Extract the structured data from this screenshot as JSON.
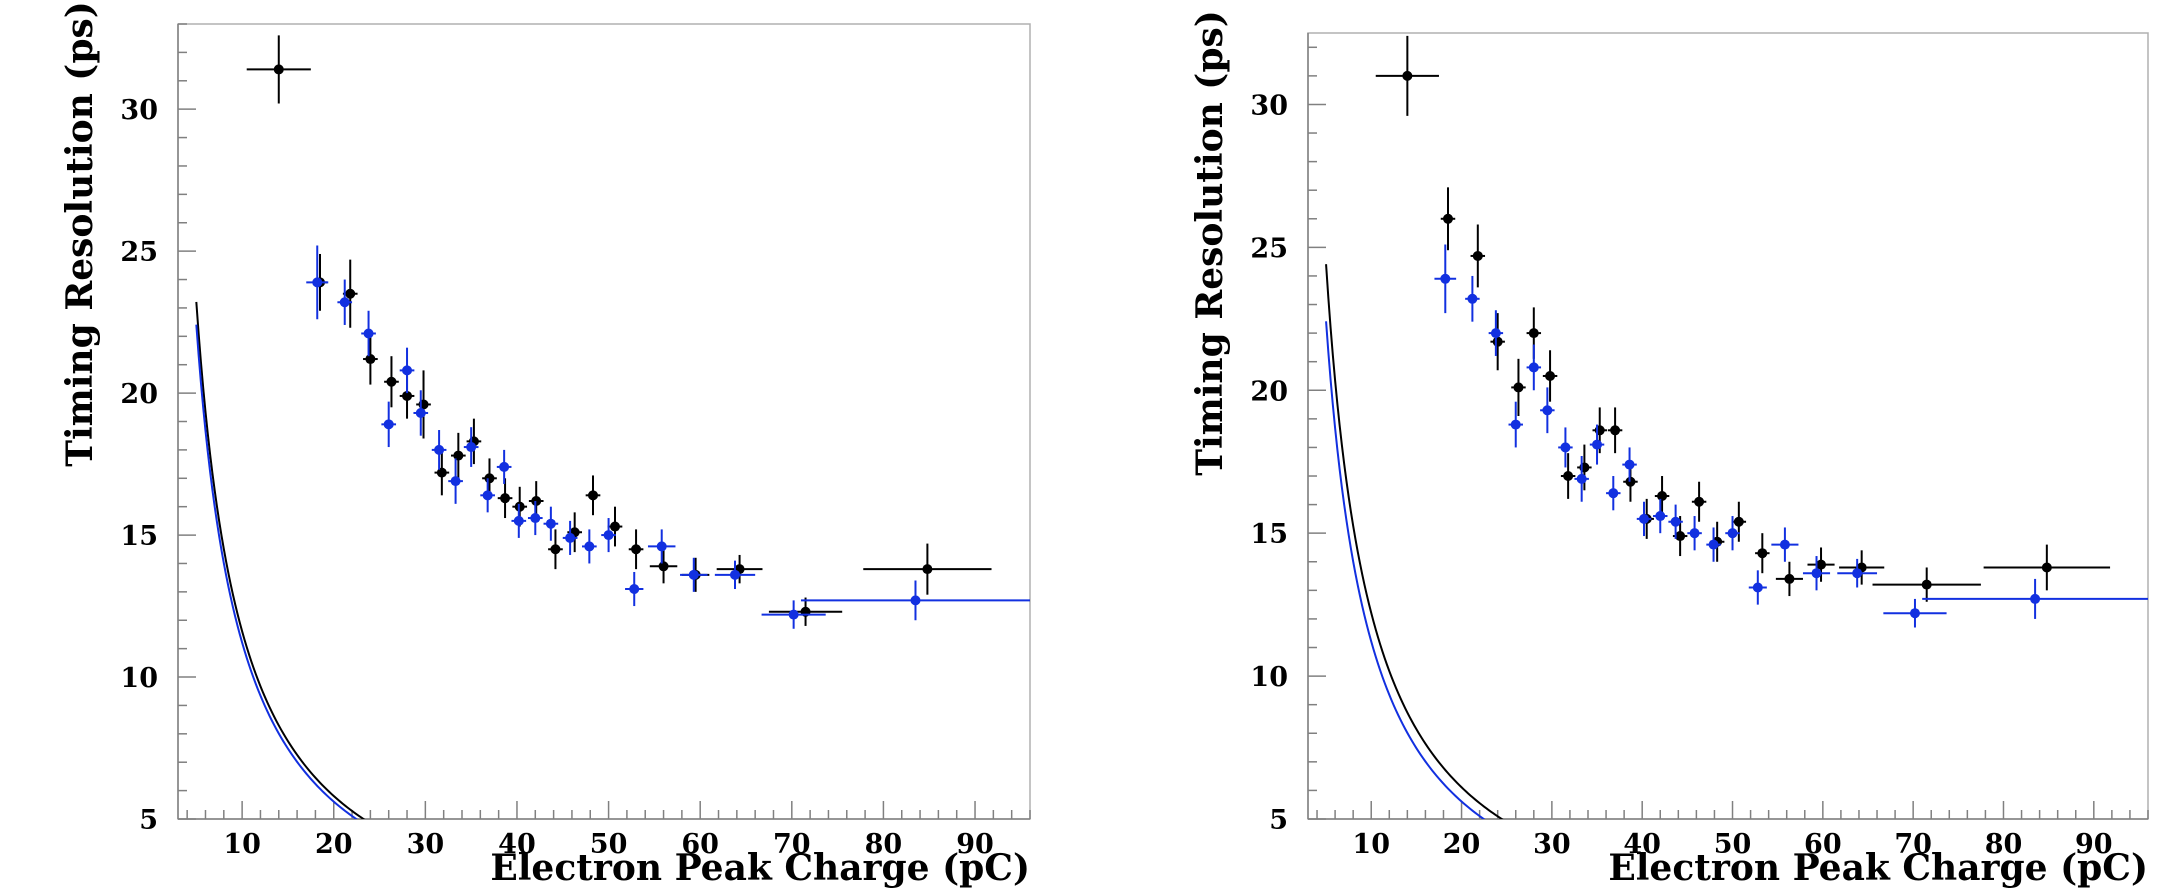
{
  "chart_data": [
    {
      "type": "scatter",
      "xlabel": "Electron Peak Charge (pC)",
      "ylabel": "Timing Resolution (ps)",
      "xlim": [
        3,
        96
      ],
      "ylim": [
        5,
        33
      ],
      "x_ticks": [
        10,
        20,
        30,
        40,
        50,
        60,
        70,
        80,
        90
      ],
      "y_ticks": [
        5,
        10,
        15,
        20,
        25,
        30
      ],
      "grid": false,
      "legend": "none",
      "series": [
        {
          "color": "#000000",
          "points": [
            {
              "x": 14,
              "y": 31.4,
              "xerr": 3.5,
              "yerr": 1.2
            },
            {
              "x": 18.5,
              "y": 23.9,
              "xerr": 0.8,
              "yerr": 1.0
            },
            {
              "x": 21.8,
              "y": 23.5,
              "xerr": 0.8,
              "yerr": 1.2
            },
            {
              "x": 24,
              "y": 21.2,
              "xerr": 0.8,
              "yerr": 0.9
            },
            {
              "x": 26.3,
              "y": 20.4,
              "xerr": 0.8,
              "yerr": 0.9
            },
            {
              "x": 28,
              "y": 19.9,
              "xerr": 0.8,
              "yerr": 0.8
            },
            {
              "x": 29.8,
              "y": 19.6,
              "xerr": 0.8,
              "yerr": 1.2
            },
            {
              "x": 31.8,
              "y": 17.2,
              "xerr": 0.8,
              "yerr": 0.8
            },
            {
              "x": 33.6,
              "y": 17.8,
              "xerr": 0.8,
              "yerr": 0.8
            },
            {
              "x": 35.3,
              "y": 18.3,
              "xerr": 0.8,
              "yerr": 0.8
            },
            {
              "x": 37,
              "y": 17.0,
              "xerr": 0.8,
              "yerr": 0.7
            },
            {
              "x": 38.7,
              "y": 16.3,
              "xerr": 0.8,
              "yerr": 0.7
            },
            {
              "x": 40.3,
              "y": 16.0,
              "xerr": 0.8,
              "yerr": 0.7
            },
            {
              "x": 42.1,
              "y": 16.2,
              "xerr": 0.8,
              "yerr": 0.7
            },
            {
              "x": 44.2,
              "y": 14.5,
              "xerr": 0.8,
              "yerr": 0.7
            },
            {
              "x": 46.3,
              "y": 15.1,
              "xerr": 0.8,
              "yerr": 0.7
            },
            {
              "x": 48.3,
              "y": 16.4,
              "xerr": 0.8,
              "yerr": 0.7
            },
            {
              "x": 50.7,
              "y": 15.3,
              "xerr": 0.8,
              "yerr": 0.7
            },
            {
              "x": 53,
              "y": 14.5,
              "xerr": 0.8,
              "yerr": 0.7
            },
            {
              "x": 56,
              "y": 13.9,
              "xerr": 1.5,
              "yerr": 0.6
            },
            {
              "x": 59.5,
              "y": 13.6,
              "xerr": 1.5,
              "yerr": 0.6
            },
            {
              "x": 64.3,
              "y": 13.8,
              "xerr": 2.5,
              "yerr": 0.5
            },
            {
              "x": 71.5,
              "y": 12.3,
              "xerr": 4.0,
              "yerr": 0.5
            },
            {
              "x": 84.8,
              "y": 13.8,
              "xerr": 7.0,
              "yerr": 0.9
            }
          ],
          "fit": {
            "a": 116,
            "b": 0.01
          }
        },
        {
          "color": "#1230e0",
          "points": [
            {
              "x": 18.2,
              "y": 23.9,
              "xerr": 1.2,
              "yerr": 1.3
            },
            {
              "x": 21.2,
              "y": 23.2,
              "xerr": 0.8,
              "yerr": 0.8
            },
            {
              "x": 23.8,
              "y": 22.1,
              "xerr": 0.8,
              "yerr": 0.8
            },
            {
              "x": 26,
              "y": 18.9,
              "xerr": 0.8,
              "yerr": 0.8
            },
            {
              "x": 28,
              "y": 20.8,
              "xerr": 0.8,
              "yerr": 0.8
            },
            {
              "x": 29.5,
              "y": 19.3,
              "xerr": 0.8,
              "yerr": 0.8
            },
            {
              "x": 31.5,
              "y": 18.0,
              "xerr": 0.8,
              "yerr": 0.7
            },
            {
              "x": 33.3,
              "y": 16.9,
              "xerr": 0.8,
              "yerr": 0.8
            },
            {
              "x": 35,
              "y": 18.1,
              "xerr": 0.8,
              "yerr": 0.7
            },
            {
              "x": 36.8,
              "y": 16.4,
              "xerr": 0.8,
              "yerr": 0.6
            },
            {
              "x": 38.6,
              "y": 17.4,
              "xerr": 0.8,
              "yerr": 0.6
            },
            {
              "x": 40.2,
              "y": 15.5,
              "xerr": 0.8,
              "yerr": 0.6
            },
            {
              "x": 42,
              "y": 15.6,
              "xerr": 0.8,
              "yerr": 0.6
            },
            {
              "x": 43.7,
              "y": 15.4,
              "xerr": 0.8,
              "yerr": 0.6
            },
            {
              "x": 45.8,
              "y": 14.9,
              "xerr": 0.8,
              "yerr": 0.6
            },
            {
              "x": 47.9,
              "y": 14.6,
              "xerr": 0.8,
              "yerr": 0.6
            },
            {
              "x": 50,
              "y": 15.0,
              "xerr": 0.8,
              "yerr": 0.6
            },
            {
              "x": 52.8,
              "y": 13.1,
              "xerr": 1.0,
              "yerr": 0.6
            },
            {
              "x": 55.8,
              "y": 14.6,
              "xerr": 1.5,
              "yerr": 0.6
            },
            {
              "x": 59.3,
              "y": 13.6,
              "xerr": 1.5,
              "yerr": 0.6
            },
            {
              "x": 63.8,
              "y": 13.6,
              "xerr": 2.2,
              "yerr": 0.5
            },
            {
              "x": 70.2,
              "y": 12.2,
              "xerr": 3.5,
              "yerr": 0.5
            },
            {
              "x": 83.5,
              "y": 12.7,
              "xerr": 12.5,
              "yerr": 0.7
            }
          ],
          "fit": {
            "a": 112,
            "b": 0.012
          }
        }
      ]
    },
    {
      "type": "scatter",
      "xlabel": "Electron Peak Charge (pC)",
      "ylabel": "Timing Resolution (ps)",
      "xlim": [
        3,
        96
      ],
      "ylim": [
        5,
        32.5
      ],
      "x_ticks": [
        10,
        20,
        30,
        40,
        50,
        60,
        70,
        80,
        90
      ],
      "y_ticks": [
        5,
        10,
        15,
        20,
        25,
        30
      ],
      "grid": false,
      "legend": "none",
      "series": [
        {
          "color": "#000000",
          "points": [
            {
              "x": 14,
              "y": 31.0,
              "xerr": 3.5,
              "yerr": 1.4
            },
            {
              "x": 18.5,
              "y": 26.0,
              "xerr": 0.8,
              "yerr": 1.1
            },
            {
              "x": 21.8,
              "y": 24.7,
              "xerr": 0.8,
              "yerr": 1.1
            },
            {
              "x": 24,
              "y": 21.7,
              "xerr": 0.8,
              "yerr": 1.0
            },
            {
              "x": 26.3,
              "y": 20.1,
              "xerr": 0.8,
              "yerr": 1.0
            },
            {
              "x": 28,
              "y": 22.0,
              "xerr": 0.8,
              "yerr": 0.9
            },
            {
              "x": 29.8,
              "y": 20.5,
              "xerr": 0.8,
              "yerr": 0.9
            },
            {
              "x": 31.8,
              "y": 17.0,
              "xerr": 0.8,
              "yerr": 0.8
            },
            {
              "x": 33.6,
              "y": 17.3,
              "xerr": 0.8,
              "yerr": 0.8
            },
            {
              "x": 35.3,
              "y": 18.6,
              "xerr": 0.8,
              "yerr": 0.8
            },
            {
              "x": 37,
              "y": 18.6,
              "xerr": 0.8,
              "yerr": 0.8
            },
            {
              "x": 38.7,
              "y": 16.8,
              "xerr": 0.8,
              "yerr": 0.7
            },
            {
              "x": 40.5,
              "y": 15.5,
              "xerr": 0.8,
              "yerr": 0.7
            },
            {
              "x": 42.2,
              "y": 16.3,
              "xerr": 0.8,
              "yerr": 0.7
            },
            {
              "x": 44.2,
              "y": 14.9,
              "xerr": 0.8,
              "yerr": 0.7
            },
            {
              "x": 46.3,
              "y": 16.1,
              "xerr": 0.8,
              "yerr": 0.7
            },
            {
              "x": 48.3,
              "y": 14.7,
              "xerr": 0.8,
              "yerr": 0.7
            },
            {
              "x": 50.7,
              "y": 15.4,
              "xerr": 0.8,
              "yerr": 0.7
            },
            {
              "x": 53.3,
              "y": 14.3,
              "xerr": 0.8,
              "yerr": 0.7
            },
            {
              "x": 56.3,
              "y": 13.4,
              "xerr": 1.5,
              "yerr": 0.6
            },
            {
              "x": 59.8,
              "y": 13.9,
              "xerr": 1.5,
              "yerr": 0.6
            },
            {
              "x": 64.3,
              "y": 13.8,
              "xerr": 2.5,
              "yerr": 0.6
            },
            {
              "x": 71.5,
              "y": 13.2,
              "xerr": 6.0,
              "yerr": 0.6
            },
            {
              "x": 84.8,
              "y": 13.8,
              "xerr": 7.0,
              "yerr": 0.8
            }
          ],
          "fit": {
            "a": 122,
            "b": 0.01
          }
        },
        {
          "color": "#1230e0",
          "points": [
            {
              "x": 18.2,
              "y": 23.9,
              "xerr": 1.2,
              "yerr": 1.2
            },
            {
              "x": 21.2,
              "y": 23.2,
              "xerr": 0.8,
              "yerr": 0.8
            },
            {
              "x": 23.8,
              "y": 22.0,
              "xerr": 0.8,
              "yerr": 0.8
            },
            {
              "x": 26,
              "y": 18.8,
              "xerr": 0.8,
              "yerr": 0.8
            },
            {
              "x": 28,
              "y": 20.8,
              "xerr": 0.8,
              "yerr": 0.8
            },
            {
              "x": 29.5,
              "y": 19.3,
              "xerr": 0.8,
              "yerr": 0.8
            },
            {
              "x": 31.5,
              "y": 18.0,
              "xerr": 0.8,
              "yerr": 0.7
            },
            {
              "x": 33.3,
              "y": 16.9,
              "xerr": 0.8,
              "yerr": 0.8
            },
            {
              "x": 35,
              "y": 18.1,
              "xerr": 0.8,
              "yerr": 0.7
            },
            {
              "x": 36.8,
              "y": 16.4,
              "xerr": 0.8,
              "yerr": 0.6
            },
            {
              "x": 38.6,
              "y": 17.4,
              "xerr": 0.8,
              "yerr": 0.6
            },
            {
              "x": 40.2,
              "y": 15.5,
              "xerr": 0.8,
              "yerr": 0.6
            },
            {
              "x": 42,
              "y": 15.6,
              "xerr": 0.8,
              "yerr": 0.6
            },
            {
              "x": 43.7,
              "y": 15.4,
              "xerr": 0.8,
              "yerr": 0.6
            },
            {
              "x": 45.8,
              "y": 15.0,
              "xerr": 0.8,
              "yerr": 0.6
            },
            {
              "x": 47.9,
              "y": 14.6,
              "xerr": 0.8,
              "yerr": 0.6
            },
            {
              "x": 50,
              "y": 15.0,
              "xerr": 0.8,
              "yerr": 0.6
            },
            {
              "x": 52.8,
              "y": 13.1,
              "xerr": 1.0,
              "yerr": 0.6
            },
            {
              "x": 55.8,
              "y": 14.6,
              "xerr": 1.5,
              "yerr": 0.6
            },
            {
              "x": 59.3,
              "y": 13.6,
              "xerr": 1.5,
              "yerr": 0.6
            },
            {
              "x": 63.8,
              "y": 13.6,
              "xerr": 2.2,
              "yerr": 0.5
            },
            {
              "x": 70.2,
              "y": 12.2,
              "xerr": 3.5,
              "yerr": 0.5
            },
            {
              "x": 83.5,
              "y": 12.7,
              "xerr": 12.5,
              "yerr": 0.7
            }
          ],
          "fit": {
            "a": 112,
            "b": 0.012
          }
        }
      ]
    }
  ]
}
